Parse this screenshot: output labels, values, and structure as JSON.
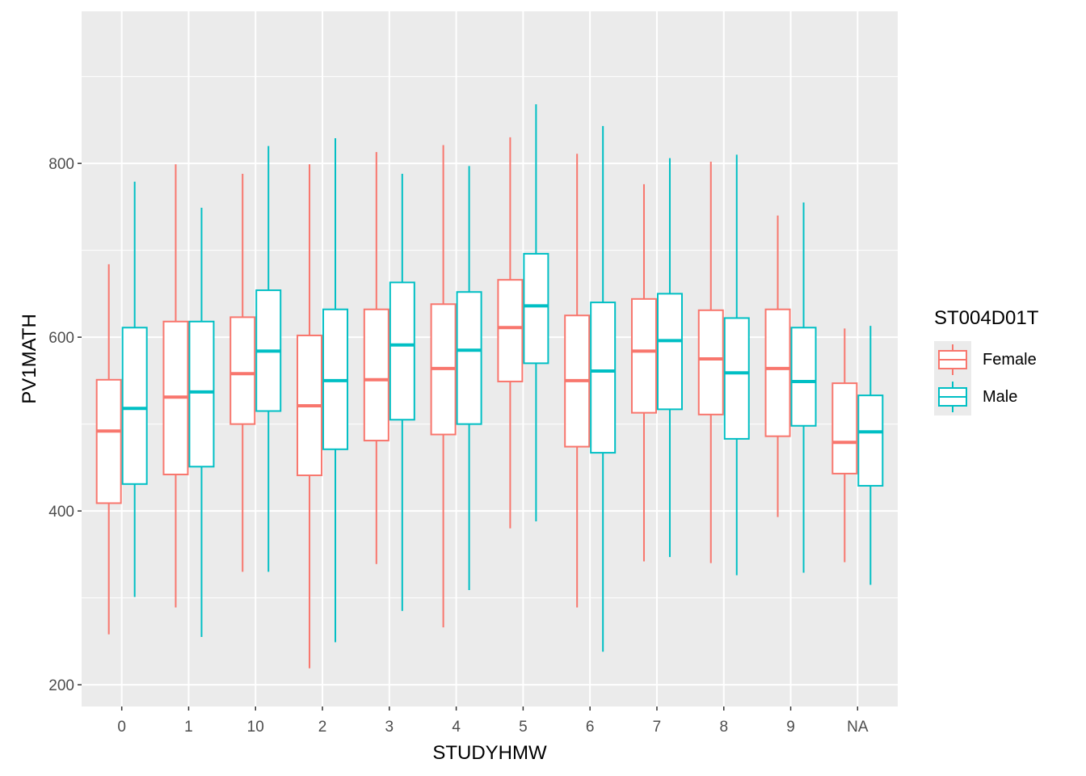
{
  "chart_data": {
    "type": "boxplot",
    "xlabel": "STUDYHMW",
    "ylabel": "PV1MATH",
    "categories": [
      "0",
      "1",
      "10",
      "2",
      "3",
      "4",
      "5",
      "6",
      "7",
      "8",
      "9",
      "NA"
    ],
    "ylim": [
      175,
      975
    ],
    "yticks": [
      200,
      400,
      600,
      800
    ],
    "grid": true,
    "legend": {
      "title": "ST004D01T",
      "position": "right"
    },
    "series": [
      {
        "name": "Female",
        "color": "#F8766D",
        "boxes": [
          {
            "min": 258,
            "q1": 409,
            "median": 492,
            "q3": 551,
            "max": 684
          },
          {
            "min": 289,
            "q1": 442,
            "median": 531,
            "q3": 618,
            "max": 799
          },
          {
            "min": 330,
            "q1": 500,
            "median": 558,
            "q3": 623,
            "max": 788
          },
          {
            "min": 219,
            "q1": 441,
            "median": 521,
            "q3": 602,
            "max": 799
          },
          {
            "min": 339,
            "q1": 481,
            "median": 551,
            "q3": 632,
            "max": 813
          },
          {
            "min": 266,
            "q1": 488,
            "median": 564,
            "q3": 638,
            "max": 821
          },
          {
            "min": 380,
            "q1": 549,
            "median": 611,
            "q3": 666,
            "max": 830
          },
          {
            "min": 289,
            "q1": 474,
            "median": 550,
            "q3": 625,
            "max": 811
          },
          {
            "min": 342,
            "q1": 513,
            "median": 584,
            "q3": 644,
            "max": 776
          },
          {
            "min": 340,
            "q1": 511,
            "median": 575,
            "q3": 631,
            "max": 802
          },
          {
            "min": 393,
            "q1": 486,
            "median": 564,
            "q3": 632,
            "max": 740
          },
          {
            "min": 341,
            "q1": 443,
            "median": 479,
            "q3": 547,
            "max": 610
          }
        ]
      },
      {
        "name": "Male",
        "color": "#00BFC4",
        "boxes": [
          {
            "min": 301,
            "q1": 431,
            "median": 518,
            "q3": 611,
            "max": 779
          },
          {
            "min": 255,
            "q1": 451,
            "median": 537,
            "q3": 618,
            "max": 749
          },
          {
            "min": 330,
            "q1": 515,
            "median": 584,
            "q3": 654,
            "max": 820
          },
          {
            "min": 249,
            "q1": 471,
            "median": 550,
            "q3": 632,
            "max": 829
          },
          {
            "min": 285,
            "q1": 505,
            "median": 591,
            "q3": 663,
            "max": 788
          },
          {
            "min": 309,
            "q1": 500,
            "median": 585,
            "q3": 652,
            "max": 797
          },
          {
            "min": 388,
            "q1": 570,
            "median": 636,
            "q3": 696,
            "max": 868
          },
          {
            "min": 238,
            "q1": 467,
            "median": 561,
            "q3": 640,
            "max": 843
          },
          {
            "min": 347,
            "q1": 517,
            "median": 596,
            "q3": 650,
            "max": 806
          },
          {
            "min": 326,
            "q1": 483,
            "median": 559,
            "q3": 622,
            "max": 810
          },
          {
            "min": 329,
            "q1": 498,
            "median": 549,
            "q3": 611,
            "max": 755
          },
          {
            "min": 315,
            "q1": 429,
            "median": 491,
            "q3": 533,
            "max": 613
          }
        ]
      }
    ]
  }
}
